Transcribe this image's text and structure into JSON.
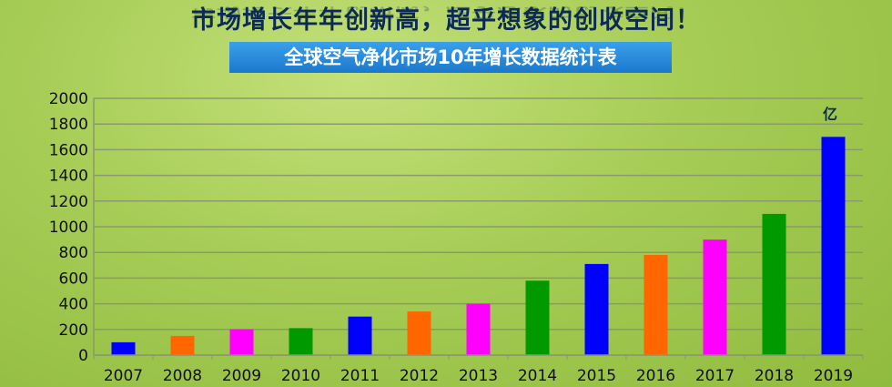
{
  "header": {
    "title": "市场增长年年创新高，超乎想象的创收空间！",
    "banner": "全球空气净化市场10年增长数据统计表"
  },
  "chart_data": {
    "type": "bar",
    "title": "全球空气净化市场10年增长数据统计表",
    "unit_label": "亿",
    "categories": [
      "2007",
      "2008",
      "2009",
      "2010",
      "2011",
      "2012",
      "2013",
      "2014",
      "2015",
      "2016",
      "2017",
      "2018",
      "2019"
    ],
    "values": [
      100,
      150,
      200,
      210,
      300,
      340,
      400,
      580,
      710,
      780,
      900,
      1100,
      1700
    ],
    "colors": [
      "#0000ff",
      "#ff6600",
      "#ff00ff",
      "#009900",
      "#0000ff",
      "#ff6600",
      "#ff00ff",
      "#009900",
      "#0000ff",
      "#ff6600",
      "#ff00ff",
      "#009900",
      "#0000ff"
    ],
    "ylim": [
      0,
      2000
    ],
    "yticks": [
      0,
      200,
      400,
      600,
      800,
      1000,
      1200,
      1400,
      1600,
      1800,
      2000
    ],
    "grid": true,
    "xlabel": "",
    "ylabel": ""
  }
}
